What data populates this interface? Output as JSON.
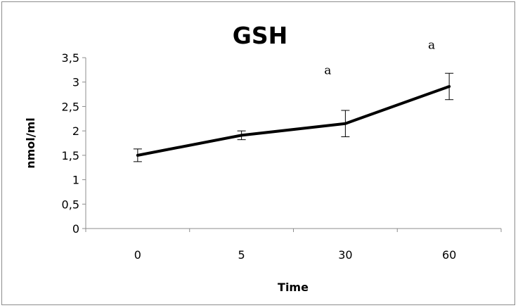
{
  "chart_data": {
    "type": "line",
    "title": "GSH",
    "xlabel": "Time",
    "ylabel": "nmol/ml",
    "categories": [
      "0",
      "5",
      "30",
      "60"
    ],
    "series": [
      {
        "values": [
          1.5,
          1.91,
          2.15,
          2.91
        ],
        "error_bars": [
          0.13,
          0.09,
          0.27,
          0.27
        ],
        "color": "#000000"
      }
    ],
    "ylim": [
      0,
      3.5
    ],
    "yticks": [
      0,
      0.5,
      1,
      1.5,
      2,
      2.5,
      3,
      3.5
    ],
    "ytick_labels": [
      "0",
      "0,5",
      "1",
      "1,5",
      "2",
      "2,5",
      "3",
      "3,5"
    ],
    "annotations": [
      {
        "text": "a",
        "category": "30",
        "y": 3.16
      },
      {
        "text": "a",
        "category": "60",
        "y": 3.68
      }
    ],
    "grid": false,
    "legend": "none"
  }
}
